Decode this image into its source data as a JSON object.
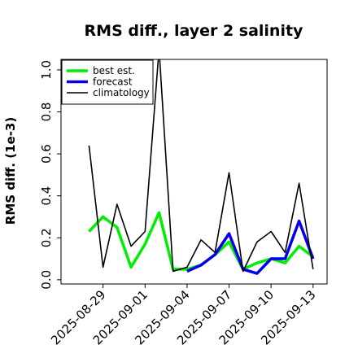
{
  "chart_data": {
    "type": "line",
    "title": "RMS diff., layer 2 salinity",
    "ylabel": "RMS diff. (1e-3)",
    "xlabel": "",
    "ylim": [
      -0.02,
      1.05
    ],
    "xlim": [
      "2025-08-26",
      "2025-09-14"
    ],
    "y_ticks": [
      "0.0",
      "0.2",
      "0.4",
      "0.6",
      "0.8",
      "1.0"
    ],
    "y_tick_values": [
      0.0,
      0.2,
      0.4,
      0.6,
      0.8,
      1.0
    ],
    "x_ticks": [
      "2025-08-29",
      "2025-09-01",
      "2025-09-04",
      "2025-09-07",
      "2025-09-10",
      "2025-09-13"
    ],
    "highlight_tick": "2025-09-04",
    "highlight_color": "#228B22",
    "legend_position": "top-left",
    "grid": false,
    "x": [
      "2025-08-28",
      "2025-08-29",
      "2025-08-30",
      "2025-08-31",
      "2025-09-01",
      "2025-09-02",
      "2025-09-03",
      "2025-09-04",
      "2025-09-05",
      "2025-09-06",
      "2025-09-07",
      "2025-09-08",
      "2025-09-09",
      "2025-09-10",
      "2025-09-11",
      "2025-09-12",
      "2025-09-13"
    ],
    "series": [
      {
        "name": "best est.",
        "color": "#00ee00",
        "values": [
          null,
          null,
          null,
          null,
          null,
          null,
          null,
          0.05,
          0.07,
          0.12,
          0.18,
          0.05,
          0.08,
          0.1,
          0.08,
          0.16,
          0.11
        ]
      },
      {
        "name": "forecast",
        "color": "#0000ee",
        "values": [
          null,
          null,
          null,
          null,
          null,
          null,
          null,
          0.04,
          0.07,
          0.12,
          0.22,
          0.05,
          0.03,
          0.1,
          0.1,
          0.28,
          0.1
        ]
      },
      {
        "name": "climatology",
        "color": "#000000",
        "values": [
          0.64,
          0.06,
          0.36,
          0.16,
          0.23,
          1.1,
          0.04,
          0.06,
          0.19,
          0.13,
          0.51,
          0.04,
          0.18,
          0.23,
          0.13,
          0.46,
          0.05
        ]
      }
    ],
    "best_est_early": [
      0.23,
      0.3,
      0.25,
      0.06,
      0.17,
      0.32,
      0.05
    ]
  }
}
